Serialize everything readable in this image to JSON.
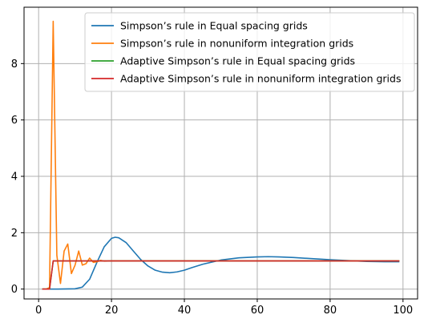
{
  "chart_data": {
    "type": "line",
    "title": "",
    "xlabel": "",
    "ylabel": "",
    "xlim": [
      -4,
      104
    ],
    "ylim": [
      -0.35,
      10.0
    ],
    "xticks": [
      0,
      20,
      40,
      60,
      80,
      100
    ],
    "yticks": [
      0,
      2,
      4,
      6,
      8
    ],
    "xtick_labels": [
      "0",
      "20",
      "40",
      "60",
      "80",
      "100"
    ],
    "ytick_labels": [
      "0",
      "2",
      "4",
      "6",
      "8"
    ],
    "grid": true,
    "legend_position": "top-right",
    "series": [
      {
        "name": " Simpson’s rule in Equal spacing grids",
        "color": "#1f77b4",
        "x": [
          1,
          5,
          10,
          12,
          14,
          16,
          18,
          20,
          21,
          22,
          24,
          26,
          28,
          30,
          32,
          34,
          36,
          38,
          40,
          42,
          45,
          50,
          55,
          60,
          63,
          66,
          70,
          75,
          80,
          85,
          90,
          95,
          99
        ],
        "y": [
          0,
          0,
          0.01,
          0.07,
          0.35,
          0.95,
          1.5,
          1.8,
          1.84,
          1.82,
          1.65,
          1.35,
          1.05,
          0.82,
          0.67,
          0.6,
          0.58,
          0.61,
          0.67,
          0.76,
          0.88,
          1.03,
          1.11,
          1.14,
          1.15,
          1.14,
          1.12,
          1.08,
          1.04,
          1.01,
          0.98,
          0.97,
          0.97
        ]
      },
      {
        "name": " Simpson’s rule in nonuniform integration grids",
        "color": "#ff7f0e",
        "x": [
          1,
          2,
          3,
          4,
          5,
          6,
          7,
          8,
          9,
          10,
          11,
          12,
          13,
          14,
          15,
          16,
          17,
          18,
          20,
          30,
          40,
          60,
          80,
          99
        ],
        "y": [
          0,
          0,
          0.05,
          9.5,
          1.2,
          0.2,
          1.35,
          1.6,
          0.55,
          0.85,
          1.35,
          0.85,
          0.9,
          1.1,
          0.95,
          0.97,
          1.02,
          0.99,
          1.0,
          1.0,
          1.0,
          1.0,
          1.0,
          1.0
        ]
      },
      {
        "name": " Adaptive Simpson’s rule in Equal spacing grids",
        "color": "#2ca02c",
        "x": [
          1,
          3,
          4,
          5,
          99
        ],
        "y": [
          0,
          0,
          1.0,
          1.0,
          1.0
        ]
      },
      {
        "name": "Adaptive Simpson’s rule in nonuniform integration grids",
        "color": "#d62728",
        "x": [
          1,
          3,
          4,
          99
        ],
        "y": [
          0,
          0,
          1.0,
          1.0
        ]
      }
    ]
  }
}
